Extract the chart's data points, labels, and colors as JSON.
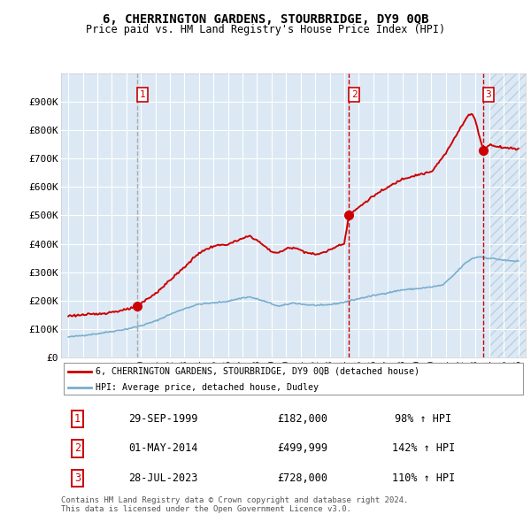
{
  "title": "6, CHERRINGTON GARDENS, STOURBRIDGE, DY9 0QB",
  "subtitle": "Price paid vs. HM Land Registry's House Price Index (HPI)",
  "legend_line1": "6, CHERRINGTON GARDENS, STOURBRIDGE, DY9 0QB (detached house)",
  "legend_line2": "HPI: Average price, detached house, Dudley",
  "table_rows": [
    {
      "num": "1",
      "date": "29-SEP-1999",
      "price": "£182,000",
      "change": "98% ↑ HPI"
    },
    {
      "num": "2",
      "date": "01-MAY-2014",
      "price": "£499,999",
      "change": "142% ↑ HPI"
    },
    {
      "num": "3",
      "date": "28-JUL-2023",
      "price": "£728,000",
      "change": "110% ↑ HPI"
    }
  ],
  "footnote1": "Contains HM Land Registry data © Crown copyright and database right 2024.",
  "footnote2": "This data is licensed under the Open Government Licence v3.0.",
  "bg_color": "#dce9f5",
  "hatch_color": "#aec6d8",
  "red_line_color": "#cc0000",
  "blue_line_color": "#7aadcc",
  "marker_color": "#cc0000",
  "vline1_color": "#aaaaaa",
  "vline23_color": "#cc0000",
  "ylim": [
    0,
    1000000
  ],
  "ytick_vals": [
    0,
    100000,
    200000,
    300000,
    400000,
    500000,
    600000,
    700000,
    800000,
    900000
  ],
  "ytick_labels": [
    "£0",
    "£100K",
    "£200K",
    "£300K",
    "£400K",
    "£500K",
    "£600K",
    "£700K",
    "£800K",
    "£900K"
  ],
  "xmin": 1994.5,
  "xmax": 2026.5,
  "sale_years": [
    1999.75,
    2014.33,
    2023.58
  ],
  "sale_prices": [
    182000,
    499999,
    728000
  ],
  "future_start": 2024.0
}
